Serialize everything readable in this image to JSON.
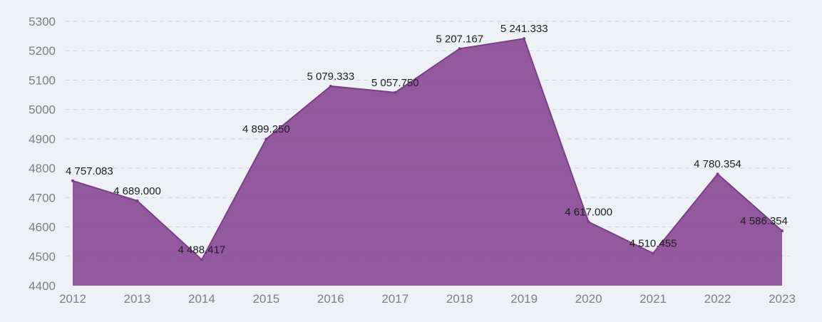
{
  "chart_data": {
    "type": "area",
    "categories": [
      "2012",
      "2013",
      "2014",
      "2015",
      "2016",
      "2017",
      "2018",
      "2019",
      "2020",
      "2021",
      "2022",
      "2023"
    ],
    "values": [
      4757.083,
      4689.0,
      4488.417,
      4899.25,
      5079.333,
      5057.75,
      5207.167,
      5241.333,
      4617.0,
      4510.455,
      4780.354,
      4586.354
    ],
    "data_labels": [
      "4 757.083",
      "4 689.000",
      "4 488.417",
      "4 899.250",
      "5 079.333",
      "5 057.750",
      "5 207.167",
      "5 241.333",
      "4 617.000",
      "4 510.455",
      "4 780.354",
      "4 586.354"
    ],
    "y_ticks": [
      "4400",
      "4500",
      "4600",
      "4700",
      "4800",
      "4900",
      "5000",
      "5100",
      "5200",
      "5300"
    ],
    "ylim": [
      4400,
      5300
    ],
    "grid": true,
    "legend": "none",
    "title": "",
    "xlabel": "",
    "ylabel": "",
    "colors": {
      "fill": "#8b4d97",
      "stroke": "#7a3f87",
      "background": "#eef2f7",
      "grid": "#d3d8de"
    }
  }
}
